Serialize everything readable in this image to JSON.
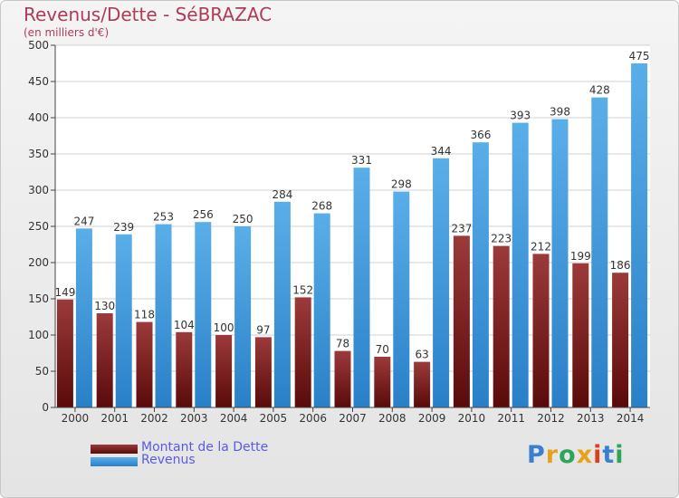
{
  "chart_data": {
    "type": "bar",
    "title": "Revenus/Dette - SéBRAZAC",
    "subtitle": "(en milliers d'€)",
    "categories": [
      "2000",
      "2001",
      "2002",
      "2003",
      "2004",
      "2005",
      "2006",
      "2007",
      "2008",
      "2009",
      "2010",
      "2011",
      "2012",
      "2013",
      "2014"
    ],
    "series": [
      {
        "name": "Montant de la Dette",
        "color": "#8b1e1e",
        "values": [
          149,
          130,
          118,
          104,
          100,
          97,
          152,
          78,
          70,
          63,
          237,
          223,
          212,
          199,
          186
        ]
      },
      {
        "name": "Revenus",
        "color": "#3a8fd6",
        "values": [
          247,
          239,
          253,
          256,
          250,
          284,
          268,
          331,
          298,
          344,
          366,
          393,
          398,
          428,
          475
        ]
      }
    ],
    "yticks": [
      0,
      50,
      100,
      150,
      200,
      250,
      300,
      350,
      400,
      450,
      500
    ],
    "ylim": [
      0,
      500
    ],
    "grid": true,
    "legend_position": "bottom-left"
  },
  "logo": {
    "text": "Proxiti",
    "colors": [
      "#3a7fd0",
      "#e8a21a",
      "#2aa55a",
      "#e8a21a",
      "#d8421a",
      "#3a7fd0",
      "#2aa55a"
    ]
  }
}
